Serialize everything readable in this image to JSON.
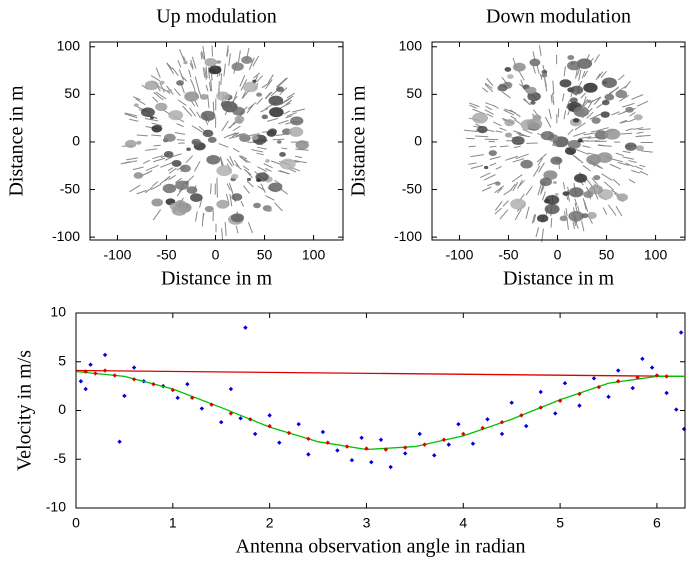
{
  "chart_data": [
    {
      "type": "image",
      "title": "Up modulation",
      "xlabel": "Distance in m",
      "ylabel": "Distance in m",
      "xlim": [
        -128,
        130
      ],
      "ylim": [
        -103,
        105
      ],
      "xticks": [
        -100,
        -50,
        0,
        50,
        100
      ],
      "yticks": [
        -100,
        -50,
        0,
        50,
        100
      ]
    },
    {
      "type": "image",
      "title": "Down modulation",
      "xlabel": "Distance in m",
      "ylabel": "Distance in m",
      "xlim": [
        -128,
        130
      ],
      "ylim": [
        -103,
        105
      ],
      "xticks": [
        -100,
        -50,
        0,
        50,
        100
      ],
      "yticks": [
        -100,
        -50,
        0,
        50,
        100
      ]
    },
    {
      "type": "scatter",
      "xlabel": "Antenna observation angle in radian",
      "ylabel": "Velocity in m/s",
      "xlim": [
        0,
        6.29
      ],
      "ylim": [
        -10,
        10
      ],
      "xticks": [
        0,
        1,
        2,
        3,
        4,
        5,
        6
      ],
      "yticks": [
        -10,
        -5,
        0,
        5,
        10
      ],
      "series": [
        {
          "style": "markers",
          "color": "#0000e0",
          "x": [
            0.05,
            0.1,
            0.15,
            0.3,
            0.45,
            0.5,
            0.6,
            0.7,
            0.9,
            1.05,
            1.15,
            1.3,
            1.5,
            1.6,
            1.7,
            1.75,
            1.85,
            2.0,
            2.1,
            2.3,
            2.4,
            2.55,
            2.7,
            2.85,
            2.95,
            3.05,
            3.15,
            3.25,
            3.4,
            3.55,
            3.7,
            3.85,
            3.95,
            4.1,
            4.25,
            4.4,
            4.5,
            4.65,
            4.8,
            4.95,
            5.05,
            5.2,
            5.35,
            5.5,
            5.6,
            5.75,
            5.85,
            5.95,
            6.1,
            6.2,
            6.25,
            6.28
          ],
          "values": [
            3,
            2.2,
            4.7,
            5.7,
            -3.2,
            1.5,
            4.4,
            3,
            2.5,
            1.3,
            2.7,
            0.2,
            -1.2,
            2.2,
            -0.8,
            8.5,
            -2.4,
            -0.5,
            -3.3,
            -1.4,
            -4.5,
            -2.2,
            -4.1,
            -5.1,
            -2.8,
            -5.3,
            -3,
            -5.8,
            -4.4,
            -2.4,
            -4.6,
            -3.5,
            -1.4,
            -3.4,
            -0.9,
            -2.4,
            0.8,
            -1.6,
            1.9,
            -0.3,
            2.8,
            0.5,
            3.3,
            1.4,
            4.1,
            2.3,
            5.3,
            4.4,
            1.8,
            0.1,
            8,
            -1.9
          ]
        },
        {
          "style": "line",
          "color": "#e00000",
          "x": [
            0,
            6.28
          ],
          "values": [
            4.1,
            3.5
          ]
        },
        {
          "style": "line",
          "color": "#00c000",
          "x": [
            0,
            0.5,
            1,
            1.5,
            2,
            2.5,
            3,
            3.5,
            4,
            4.5,
            5,
            5.5,
            6,
            6.28
          ],
          "values": [
            4,
            3.5,
            2.2,
            0.3,
            -1.7,
            -3.2,
            -4,
            -3.7,
            -2.6,
            -0.9,
            1.1,
            2.8,
            3.5,
            3.5
          ]
        },
        {
          "style": "markers",
          "color": "#e00000",
          "x": [
            0.1,
            0.2,
            0.3,
            0.4,
            0.6,
            0.8,
            1,
            1.2,
            1.4,
            1.6,
            1.8,
            2,
            2.2,
            2.4,
            2.6,
            2.8,
            3,
            3.2,
            3.4,
            3.6,
            3.8,
            4,
            4.2,
            4.4,
            4.6,
            4.8,
            5,
            5.2,
            5.4,
            5.6,
            5.8,
            6,
            6.1
          ],
          "values": [
            4,
            3.8,
            4.1,
            3.6,
            3.2,
            2.7,
            2.1,
            1.3,
            0.6,
            -0.3,
            -0.9,
            -1.6,
            -2.3,
            -2.9,
            -3.3,
            -3.7,
            -3.9,
            -4,
            -3.8,
            -3.5,
            -3,
            -2.4,
            -1.8,
            -1.2,
            -0.5,
            0.3,
            1,
            1.7,
            2.4,
            3,
            3.4,
            3.6,
            3.5
          ]
        }
      ]
    }
  ]
}
